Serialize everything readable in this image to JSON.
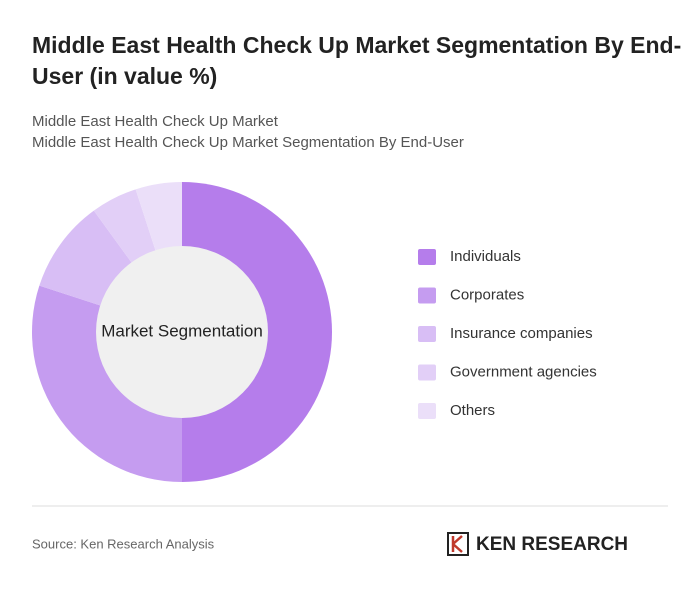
{
  "chart_data": {
    "type": "donut",
    "title": "Middle East Health Check Up Market Segmentation By End-User (in value %)",
    "subtitle": [
      "Middle East Health Check Up Market",
      "Middle East Health Check Up Market Segmentation By End-User"
    ],
    "center_label": "Market Segmentation",
    "categories": [
      "Individuals",
      "Corporates",
      "Insurance companies",
      "Government agencies",
      "Others"
    ],
    "values": [
      50,
      30,
      10,
      5,
      5
    ],
    "colors": [
      "#b57deb",
      "#c59cf0",
      "#d8bef5",
      "#e2cff7",
      "#ebdff9"
    ],
    "source": "Source: Ken Research Analysis",
    "logo": "KEN RESEARCH"
  }
}
